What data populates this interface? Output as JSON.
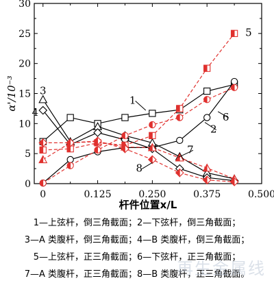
{
  "chart_data": {
    "type": "line",
    "xlabel": "杆件位置x/L",
    "ylabel": "α'/10⁻³",
    "xlim": [
      -0.02,
      0.5
    ],
    "ylim": [
      0,
      30
    ],
    "xticks": [
      0,
      0.125,
      0.25,
      0.375,
      0.5
    ],
    "xtick_labels": [
      "0",
      "0.125",
      "0.250",
      "0.375",
      "0.500"
    ],
    "yticks": [
      0,
      5,
      10,
      15,
      20,
      25,
      30
    ],
    "ytick_labels": [
      "0",
      "5",
      "10",
      "15",
      "20",
      "25",
      "30"
    ],
    "grid": false,
    "series": [
      {
        "name": "1",
        "color": "#000000",
        "dashed": false,
        "marker": "square-open",
        "x": [
          0,
          0.0625,
          0.125,
          0.1875,
          0.25,
          0.3125,
          0.375,
          0.4375
        ],
        "y": [
          7.0,
          11.0,
          10.0,
          11.0,
          11.7,
          12.3,
          15.4,
          16.5
        ]
      },
      {
        "name": "2",
        "color": "#000000",
        "dashed": false,
        "marker": "circle-open",
        "x": [
          0,
          0.0625,
          0.125,
          0.1875,
          0.25,
          0.3125,
          0.375,
          0.4375
        ],
        "y": [
          0.1,
          4.0,
          5.3,
          6.0,
          6.0,
          7.2,
          11.0,
          17.0
        ]
      },
      {
        "name": "3",
        "color": "#000000",
        "dashed": false,
        "marker": "triangle-open",
        "x": [
          0,
          0.0625,
          0.125,
          0.1875,
          0.25,
          0.3125,
          0.375,
          0.4375
        ],
        "y": [
          14.0,
          7.0,
          9.5,
          8.0,
          6.8,
          4.5,
          1.8,
          0.8
        ]
      },
      {
        "name": "4",
        "color": "#000000",
        "dashed": false,
        "marker": "diamond-open",
        "x": [
          0,
          0.0625,
          0.125,
          0.1875,
          0.25,
          0.3125,
          0.375,
          0.4375
        ],
        "y": [
          12.2,
          6.5,
          8.5,
          7.3,
          5.8,
          2.5,
          1.0,
          0.5
        ]
      },
      {
        "name": "5",
        "color": "#e0312e",
        "dashed": true,
        "marker": "square-half",
        "x": [
          0,
          0.0625,
          0.125,
          0.1875,
          0.25,
          0.3125,
          0.375,
          0.4375
        ],
        "y": [
          5.6,
          5.8,
          6.8,
          6.4,
          8.0,
          12.5,
          19.2,
          25.0
        ]
      },
      {
        "name": "6",
        "color": "#e0312e",
        "dashed": true,
        "marker": "circle-half",
        "x": [
          0,
          0.0625,
          0.125,
          0.1875,
          0.25,
          0.3125,
          0.375,
          0.4375
        ],
        "y": [
          0.1,
          3.0,
          5.6,
          8.0,
          9.8,
          11.0,
          14.0,
          16.0
        ]
      },
      {
        "name": "7",
        "color": "#e0312e",
        "dashed": true,
        "marker": "triangle-half",
        "x": [
          0,
          0.0625,
          0.125,
          0.1875,
          0.25,
          0.3125,
          0.375,
          0.4375
        ],
        "y": [
          4.0,
          6.8,
          7.0,
          6.1,
          6.0,
          4.3,
          2.6,
          0.8
        ]
      },
      {
        "name": "8",
        "color": "#e0312e",
        "dashed": true,
        "marker": "diamond-half",
        "x": [
          0,
          0.0625,
          0.125,
          0.1875,
          0.25,
          0.3125,
          0.375,
          0.4375
        ],
        "y": [
          6.8,
          6.8,
          7.1,
          5.8,
          4.0,
          1.8,
          0.6,
          0.3
        ]
      }
    ],
    "series_labels": [
      {
        "text": "1",
        "color": "#000000",
        "x": 0.205,
        "y": 13.3,
        "lx": 0.235,
        "ly": 12.2
      },
      {
        "text": "2",
        "color": "#000000",
        "x": 0.39,
        "y": 8.5,
        "lx": 0.37,
        "ly": 10.2
      },
      {
        "text": "3",
        "color": "#000000",
        "x": 0.0,
        "y": 14.9,
        "lx": null,
        "ly": null
      },
      {
        "text": "4",
        "color": "#000000",
        "x": -0.018,
        "y": 11.3,
        "lx": null,
        "ly": null
      },
      {
        "text": "5",
        "color": "#000000",
        "x": 0.47,
        "y": 24.6,
        "lx": null,
        "ly": null
      },
      {
        "text": "6",
        "color": "#000000",
        "x": 0.418,
        "y": 10.5,
        "lx": 0.4,
        "ly": 12.0
      },
      {
        "text": "7",
        "color": "#000000",
        "x": 0.337,
        "y": 5.1,
        "lx": 0.31,
        "ly": 4.4
      },
      {
        "text": "8",
        "color": "#000000",
        "x": 0.22,
        "y": 2.0,
        "lx": 0.25,
        "ly": 3.5
      }
    ]
  },
  "legend_lines": [
    "1—上弦杆，倒三角截面；2—下弦杆，倒三角截面；",
    "3—A 类腹杆，倒三角截面；4—B 类腹杆，倒三角截面；",
    "5—上弦杆，正三角截面；6—下弦杆，正三角截面；",
    "7—A 类腹杆，正三角截面；8—B 类腹杆，正三角截面。"
  ],
  "watermark": "再生金属线"
}
